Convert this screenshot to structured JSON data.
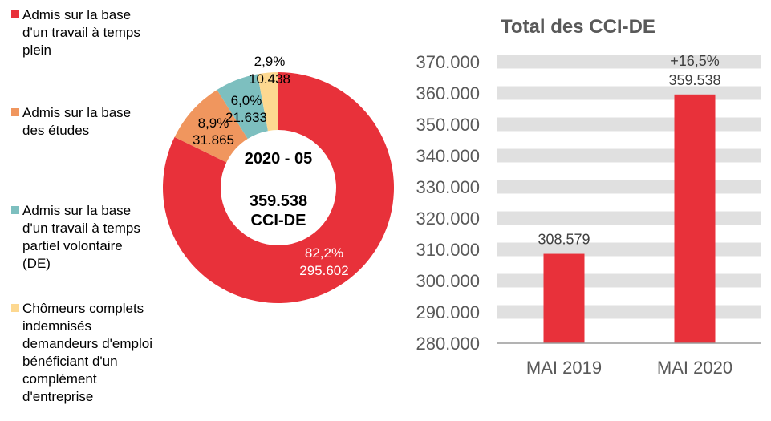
{
  "colors": {
    "red": "#E8313A",
    "orange": "#F0965E",
    "teal": "#7DBFBF",
    "yellow": "#FDD890",
    "band": "#E0E0E0",
    "axis_text": "#595959"
  },
  "chart_data": [
    {
      "type": "pie",
      "donut": true,
      "center_label": {
        "period": "2020 - 05",
        "total": "359.538",
        "unit": "CCI-DE"
      },
      "legend_placement": "left",
      "slices": [
        {
          "name": "Admis sur la base\nd'un travail à temps\nplein",
          "value": 295602,
          "value_label": "295.602",
          "percent_label": "82,2%",
          "color": "#E8313A"
        },
        {
          "name": "Admis sur la base\ndes études",
          "value": 31865,
          "value_label": "31.865",
          "percent_label": "8,9%",
          "color": "#F0965E"
        },
        {
          "name": "Admis sur la base\nd'un travail à temps\npartiel volontaire\n(DE)",
          "value": 21633,
          "value_label": "21.633",
          "percent_label": "6,0%",
          "color": "#7DBFBF"
        },
        {
          "name": "Chômeurs complets\nindemnisés\ndemandeurs d'emploi\nbénéficiant d'un\ncomplément\nd'entreprise",
          "value": 10438,
          "value_label": "10.438",
          "percent_label": "2,9%",
          "color": "#FDD890"
        }
      ]
    },
    {
      "type": "bar",
      "title": "Total des CCI-DE",
      "categories": [
        "MAI 2019",
        "MAI 2020"
      ],
      "values": [
        308579,
        359538
      ],
      "value_labels": [
        "308.579",
        "359.538"
      ],
      "annotations": [
        "",
        "+16,5%"
      ],
      "ylim": [
        280000,
        370000
      ],
      "yticks": [
        280000,
        290000,
        300000,
        310000,
        320000,
        330000,
        340000,
        350000,
        360000,
        370000
      ],
      "ytick_labels": [
        "280.000",
        "290.000",
        "300.000",
        "310.000",
        "320.000",
        "330.000",
        "340.000",
        "350.000",
        "360.000",
        "370.000"
      ],
      "grid": "horizontal bands",
      "bar_color": "#E8313A"
    }
  ]
}
